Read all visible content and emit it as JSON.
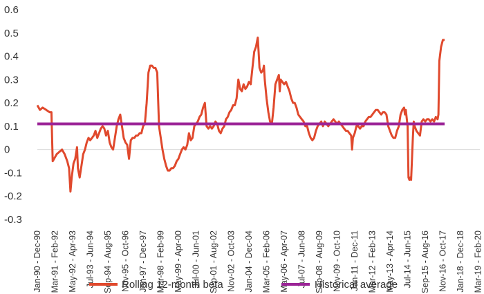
{
  "chart_data": {
    "type": "line",
    "title": "",
    "xlabel": "",
    "ylabel": "",
    "ylim": [
      -0.3,
      0.6
    ],
    "yticks": [
      0.6,
      0.5,
      0.4,
      0.3,
      0.2,
      0.1,
      0,
      -0.1,
      -0.2,
      -0.3
    ],
    "ytick_labels": [
      "0.6",
      "0.5",
      "0.4",
      "0.3",
      "0.2",
      "0.1",
      "0",
      "-0.1",
      "-0.2",
      "-0.3"
    ],
    "categories": [
      "Jan-90 - Dec-90",
      "Mar-91 - Feb-92",
      "May-92 - Apr-93",
      "Jul-93 - Jun-94",
      "Sep-94 - Aug-95",
      "Nov-95 - Oct-96",
      "Jan-97 - Dec-97",
      "Mar-98 - Feb-99",
      "May-99 - Apr-00",
      "Jul-00 - Jun-01",
      "Sep-01 - Aug-02",
      "Nov-02 - Oct-03",
      "Jan-04 - Dec-04",
      "Mar-05 - Feb-06",
      "May-06 - Apr-07",
      "Jul-07 - Jun-08",
      "Sep-08 - Aug-09",
      "Nov-09 - Oct-10",
      "Jan-11 - Dec-11",
      "Mar-12 - Feb-13",
      "May-13 - Apr-14",
      "Jul-14 - Jun-15",
      "Sep-15 - Aug-16",
      "Nov-16 - Oct-17",
      "Jan-18 - Dec-18",
      "Mar-19 - Feb-20"
    ],
    "series": [
      {
        "name": "Rolling 12-month beta",
        "color": "#e0492d",
        "points": [
          [
            0.0,
            0.19
          ],
          [
            0.15,
            0.17
          ],
          [
            0.3,
            0.18
          ],
          [
            0.5,
            0.17
          ],
          [
            0.7,
            0.16
          ],
          [
            0.8,
            0.16
          ],
          [
            0.87,
            -0.05
          ],
          [
            0.95,
            -0.04
          ],
          [
            1.1,
            -0.02
          ],
          [
            1.25,
            -0.01
          ],
          [
            1.4,
            0.0
          ],
          [
            1.55,
            -0.02
          ],
          [
            1.7,
            -0.05
          ],
          [
            1.8,
            -0.08
          ],
          [
            1.88,
            -0.18
          ],
          [
            1.95,
            -0.12
          ],
          [
            2.05,
            -0.06
          ],
          [
            2.15,
            -0.04
          ],
          [
            2.25,
            0.01
          ],
          [
            2.3,
            -0.08
          ],
          [
            2.4,
            -0.12
          ],
          [
            2.5,
            -0.07
          ],
          [
            2.6,
            -0.02
          ],
          [
            2.7,
            0.0
          ],
          [
            2.8,
            0.03
          ],
          [
            2.9,
            0.05
          ],
          [
            3.0,
            0.04
          ],
          [
            3.1,
            0.05
          ],
          [
            3.2,
            0.06
          ],
          [
            3.3,
            0.08
          ],
          [
            3.4,
            0.05
          ],
          [
            3.5,
            0.07
          ],
          [
            3.6,
            0.09
          ],
          [
            3.7,
            0.1
          ],
          [
            3.8,
            0.09
          ],
          [
            3.9,
            0.06
          ],
          [
            4.0,
            0.08
          ],
          [
            4.1,
            0.03
          ],
          [
            4.2,
            0.01
          ],
          [
            4.3,
            0.0
          ],
          [
            4.4,
            0.05
          ],
          [
            4.5,
            0.1
          ],
          [
            4.6,
            0.13
          ],
          [
            4.7,
            0.15
          ],
          [
            4.8,
            0.1
          ],
          [
            4.9,
            0.05
          ],
          [
            5.0,
            0.03
          ],
          [
            5.1,
            0.02
          ],
          [
            5.2,
            -0.04
          ],
          [
            5.3,
            0.04
          ],
          [
            5.4,
            0.05
          ],
          [
            5.5,
            0.05
          ],
          [
            5.6,
            0.06
          ],
          [
            5.7,
            0.06
          ],
          [
            5.8,
            0.07
          ],
          [
            5.9,
            0.07
          ],
          [
            6.0,
            0.1
          ],
          [
            6.1,
            0.11
          ],
          [
            6.2,
            0.2
          ],
          [
            6.3,
            0.33
          ],
          [
            6.4,
            0.36
          ],
          [
            6.5,
            0.36
          ],
          [
            6.6,
            0.35
          ],
          [
            6.7,
            0.35
          ],
          [
            6.8,
            0.33
          ],
          [
            6.9,
            0.1
          ],
          [
            7.0,
            0.05
          ],
          [
            7.1,
            0.0
          ],
          [
            7.2,
            -0.04
          ],
          [
            7.3,
            -0.07
          ],
          [
            7.4,
            -0.09
          ],
          [
            7.5,
            -0.09
          ],
          [
            7.6,
            -0.08
          ],
          [
            7.7,
            -0.08
          ],
          [
            7.8,
            -0.07
          ],
          [
            7.9,
            -0.05
          ],
          [
            8.0,
            -0.04
          ],
          [
            8.1,
            -0.02
          ],
          [
            8.2,
            0.0
          ],
          [
            8.3,
            0.01
          ],
          [
            8.4,
            0.0
          ],
          [
            8.5,
            0.02
          ],
          [
            8.6,
            0.07
          ],
          [
            8.7,
            0.04
          ],
          [
            8.8,
            0.05
          ],
          [
            8.9,
            0.1
          ],
          [
            9.0,
            0.11
          ],
          [
            9.1,
            0.12
          ],
          [
            9.2,
            0.14
          ],
          [
            9.3,
            0.15
          ],
          [
            9.4,
            0.18
          ],
          [
            9.5,
            0.2
          ],
          [
            9.6,
            0.1
          ],
          [
            9.7,
            0.09
          ],
          [
            9.8,
            0.1
          ],
          [
            9.9,
            0.09
          ],
          [
            10.0,
            0.1
          ],
          [
            10.1,
            0.12
          ],
          [
            10.2,
            0.11
          ],
          [
            10.3,
            0.08
          ],
          [
            10.4,
            0.07
          ],
          [
            10.5,
            0.09
          ],
          [
            10.6,
            0.1
          ],
          [
            10.7,
            0.13
          ],
          [
            10.8,
            0.14
          ],
          [
            10.9,
            0.16
          ],
          [
            11.0,
            0.17
          ],
          [
            11.1,
            0.19
          ],
          [
            11.2,
            0.19
          ],
          [
            11.3,
            0.22
          ],
          [
            11.4,
            0.3
          ],
          [
            11.5,
            0.26
          ],
          [
            11.6,
            0.25
          ],
          [
            11.7,
            0.28
          ],
          [
            11.8,
            0.26
          ],
          [
            11.9,
            0.27
          ],
          [
            12.0,
            0.29
          ],
          [
            12.1,
            0.28
          ],
          [
            12.2,
            0.35
          ],
          [
            12.3,
            0.42
          ],
          [
            12.4,
            0.44
          ],
          [
            12.5,
            0.48
          ],
          [
            12.55,
            0.42
          ],
          [
            12.6,
            0.35
          ],
          [
            12.7,
            0.33
          ],
          [
            12.8,
            0.34
          ],
          [
            12.85,
            0.36
          ],
          [
            12.9,
            0.3
          ],
          [
            13.0,
            0.22
          ],
          [
            13.1,
            0.16
          ],
          [
            13.2,
            0.12
          ],
          [
            13.3,
            0.11
          ],
          [
            13.4,
            0.18
          ],
          [
            13.5,
            0.28
          ],
          [
            13.6,
            0.3
          ],
          [
            13.7,
            0.32
          ],
          [
            13.75,
            0.25
          ],
          [
            13.8,
            0.3
          ],
          [
            13.9,
            0.29
          ],
          [
            14.0,
            0.28
          ],
          [
            14.1,
            0.29
          ],
          [
            14.2,
            0.27
          ],
          [
            14.3,
            0.25
          ],
          [
            14.4,
            0.22
          ],
          [
            14.5,
            0.2
          ],
          [
            14.6,
            0.2
          ],
          [
            14.7,
            0.18
          ],
          [
            14.8,
            0.15
          ],
          [
            14.9,
            0.14
          ],
          [
            15.0,
            0.13
          ],
          [
            15.1,
            0.12
          ],
          [
            15.2,
            0.1
          ],
          [
            15.3,
            0.1
          ],
          [
            15.4,
            0.07
          ],
          [
            15.5,
            0.05
          ],
          [
            15.6,
            0.04
          ],
          [
            15.7,
            0.05
          ],
          [
            15.8,
            0.08
          ],
          [
            15.9,
            0.1
          ],
          [
            16.0,
            0.11
          ],
          [
            16.1,
            0.12
          ],
          [
            16.2,
            0.1
          ],
          [
            16.3,
            0.12
          ],
          [
            16.4,
            0.11
          ],
          [
            16.5,
            0.1
          ],
          [
            16.6,
            0.11
          ],
          [
            16.7,
            0.12
          ],
          [
            16.8,
            0.13
          ],
          [
            16.9,
            0.12
          ],
          [
            17.0,
            0.11
          ],
          [
            17.1,
            0.12
          ],
          [
            17.2,
            0.11
          ],
          [
            17.3,
            0.1
          ],
          [
            17.4,
            0.09
          ],
          [
            17.5,
            0.08
          ],
          [
            17.6,
            0.08
          ],
          [
            17.7,
            0.07
          ],
          [
            17.8,
            0.06
          ],
          [
            17.85,
            0.0
          ],
          [
            17.9,
            0.05
          ],
          [
            18.0,
            0.07
          ],
          [
            18.1,
            0.1
          ],
          [
            18.2,
            0.1
          ],
          [
            18.3,
            0.09
          ],
          [
            18.4,
            0.1
          ],
          [
            18.5,
            0.1
          ],
          [
            18.6,
            0.12
          ],
          [
            18.7,
            0.13
          ],
          [
            18.8,
            0.14
          ],
          [
            18.9,
            0.14
          ],
          [
            19.0,
            0.15
          ],
          [
            19.1,
            0.16
          ],
          [
            19.2,
            0.17
          ],
          [
            19.3,
            0.17
          ],
          [
            19.4,
            0.16
          ],
          [
            19.5,
            0.15
          ],
          [
            19.6,
            0.16
          ],
          [
            19.7,
            0.16
          ],
          [
            19.8,
            0.15
          ],
          [
            19.9,
            0.1
          ],
          [
            20.0,
            0.08
          ],
          [
            20.1,
            0.06
          ],
          [
            20.2,
            0.05
          ],
          [
            20.3,
            0.05
          ],
          [
            20.4,
            0.08
          ],
          [
            20.5,
            0.1
          ],
          [
            20.6,
            0.15
          ],
          [
            20.7,
            0.17
          ],
          [
            20.8,
            0.18
          ],
          [
            20.85,
            0.15
          ],
          [
            20.9,
            0.17
          ],
          [
            21.0,
            0.1
          ],
          [
            21.05,
            -0.12
          ],
          [
            21.1,
            -0.13
          ],
          [
            21.15,
            -0.12
          ],
          [
            21.2,
            -0.13
          ],
          [
            21.3,
            0.05
          ],
          [
            21.35,
            0.12
          ],
          [
            21.4,
            0.1
          ],
          [
            21.5,
            0.08
          ],
          [
            21.6,
            0.07
          ],
          [
            21.7,
            0.06
          ],
          [
            21.8,
            0.12
          ],
          [
            21.9,
            0.13
          ],
          [
            22.0,
            0.12
          ],
          [
            22.1,
            0.13
          ],
          [
            22.2,
            0.13
          ],
          [
            22.3,
            0.12
          ],
          [
            22.4,
            0.13
          ],
          [
            22.5,
            0.12
          ],
          [
            22.6,
            0.14
          ],
          [
            22.7,
            0.13
          ],
          [
            22.75,
            0.15
          ],
          [
            22.8,
            0.38
          ],
          [
            22.9,
            0.44
          ],
          [
            23.0,
            0.47
          ],
          [
            23.1,
            0.47
          ]
        ]
      },
      {
        "name": "Historical average",
        "color": "#9b2497",
        "value": 0.11
      }
    ],
    "legend_position": "bottom-center",
    "grid": false
  }
}
